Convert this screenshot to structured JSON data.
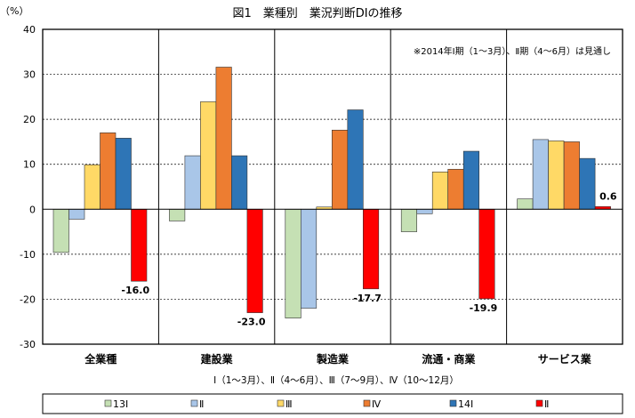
{
  "chart_data": {
    "type": "bar",
    "title": "図1　業種別　業況判断DIの推移",
    "ylabel": "（%）",
    "ylim": [
      -30,
      40
    ],
    "yticks": [
      40,
      30,
      20,
      10,
      0,
      -10,
      -20,
      -30
    ],
    "ytick_labels": [
      "40",
      "30",
      "20",
      "10",
      "0",
      "-10",
      "-20",
      "-30"
    ],
    "grid": true,
    "note": "※2014年Ⅰ期（1～3月）、Ⅱ期（4～6月）は見通し",
    "xlabel": "Ⅰ（1～3月）、Ⅱ（4～6月）、Ⅲ（7～9月）、Ⅳ（10～12月）",
    "categories": [
      "全業種",
      "建設業",
      "製造業",
      "流通・商業",
      "サービス業"
    ],
    "legend_position": "bottom",
    "series": [
      {
        "name": "13Ⅰ",
        "color": "#c5e0b4",
        "values": [
          -9.6,
          -2.6,
          -24.2,
          -5.0,
          2.3
        ]
      },
      {
        "name": "Ⅱ",
        "color": "#a9c6e8",
        "values": [
          -2.2,
          11.9,
          -22.0,
          -1.0,
          15.5
        ]
      },
      {
        "name": "Ⅲ",
        "color": "#ffd966",
        "values": [
          9.9,
          23.9,
          0.5,
          8.3,
          15.2
        ]
      },
      {
        "name": "Ⅳ",
        "color": "#ed7d31",
        "values": [
          17.0,
          31.6,
          17.6,
          8.9,
          15.0
        ]
      },
      {
        "name": "14Ⅰ",
        "color": "#2e75b6",
        "values": [
          15.8,
          11.9,
          22.1,
          12.9,
          11.3
        ]
      },
      {
        "name": "Ⅱ",
        "color": "#ff0000",
        "values": [
          -16.0,
          -23.0,
          -17.7,
          -19.9,
          0.6
        ]
      }
    ],
    "data_labels": [
      "-16.0",
      "-23.0",
      "-17.7",
      "-19.9",
      "0.6"
    ]
  }
}
